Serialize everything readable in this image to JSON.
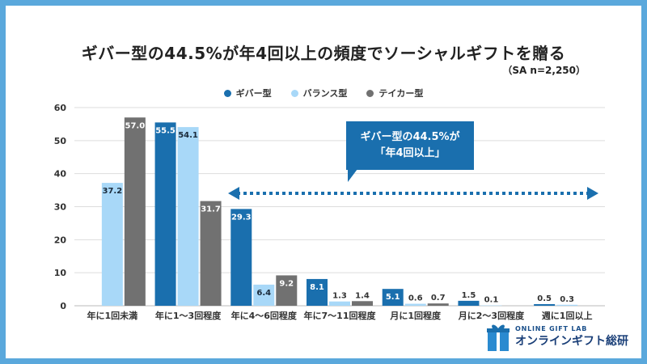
{
  "chart_data": {
    "type": "bar",
    "title": "ギバー型の44.5%が年4回以上の頻度でソーシャルギフトを贈る",
    "subtitle": "（SA n=2,250）",
    "categories": [
      "年に1回未満",
      "年に1～3回程度",
      "年に4～6回程度",
      "年に7～11回程度",
      "月に1回程度",
      "月に2～3回程度",
      "週に1回以上"
    ],
    "series": [
      {
        "name": "ギバー型",
        "color": "#1a6fae",
        "values": [
          null,
          55.5,
          29.3,
          8.1,
          5.1,
          1.5,
          0.5
        ]
      },
      {
        "name": "バランス型",
        "color": "#a8d8f8",
        "values": [
          37.2,
          54.1,
          6.4,
          1.3,
          0.6,
          0.1,
          0.3
        ]
      },
      {
        "name": "テイカー型",
        "color": "#717171",
        "values": [
          57.0,
          31.7,
          9.2,
          1.4,
          0.7,
          null,
          null
        ]
      }
    ],
    "ylim": [
      0,
      60
    ],
    "yticks": [
      0,
      10,
      20,
      30,
      40,
      50,
      60
    ],
    "xlabel": "",
    "ylabel": "",
    "grid": true,
    "legend": "top-center",
    "annotation": {
      "line1": "ギバー型の44.5%が",
      "line2": "「年4回以上」"
    }
  },
  "logo": {
    "top": "ONLINE GIFT LAB",
    "bottom": "オンラインギフト総研"
  }
}
